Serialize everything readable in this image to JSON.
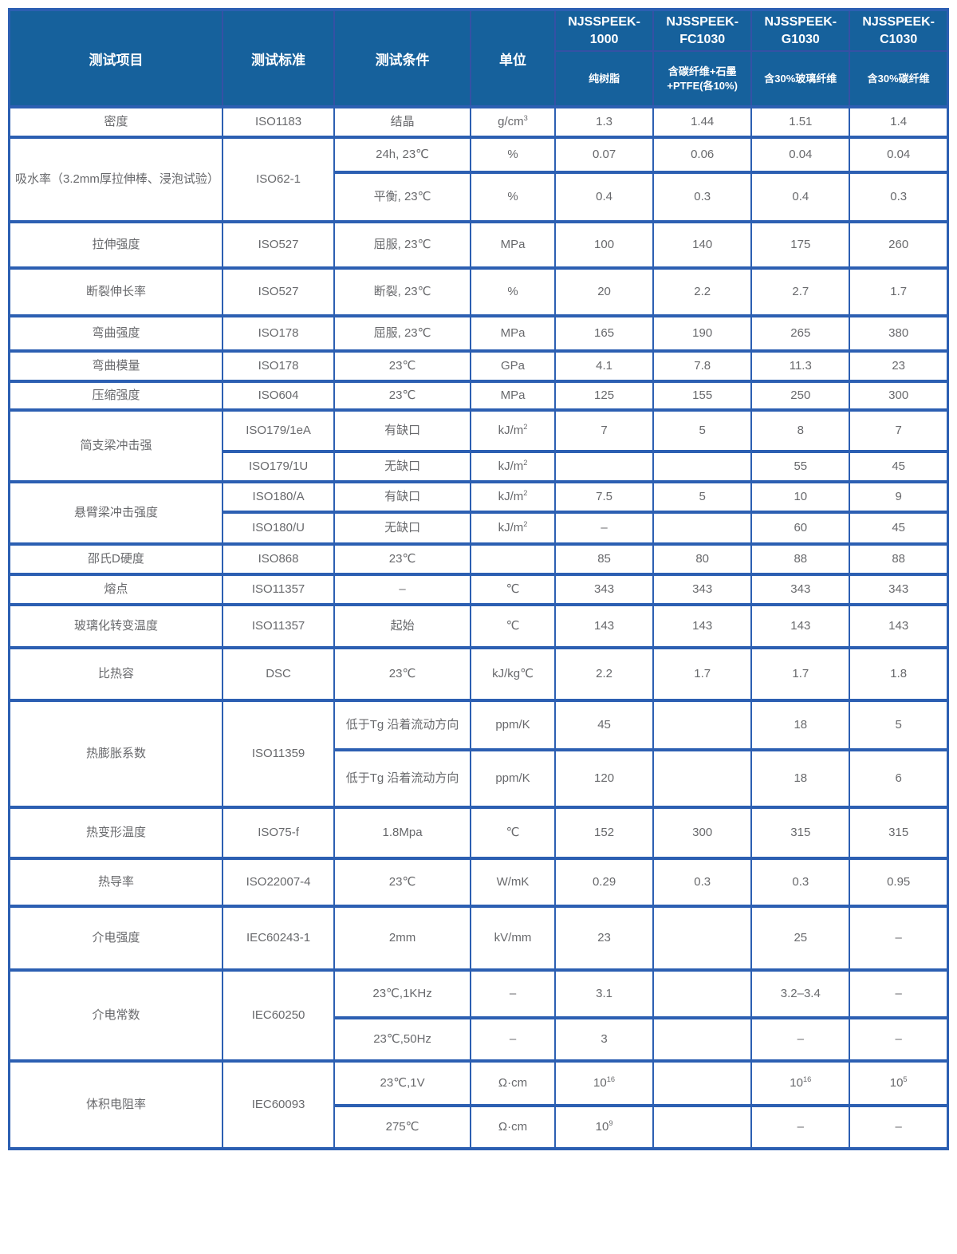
{
  "colors": {
    "header_bg": "#16619C",
    "header_divider": "#3551A5",
    "grid_border": "#2C5FB2",
    "header_text": "#FFFFFF",
    "body_text": "#68696C"
  },
  "table": {
    "columns": [
      "测试项目",
      "测试标准",
      "测试条件",
      "单位"
    ],
    "products": [
      {
        "name": "NJSSPEEK-1000",
        "desc": "纯树脂"
      },
      {
        "name": "NJSSPEEK-FC1030",
        "desc": "含碳纤维+石墨+PTFE(各10%)"
      },
      {
        "name": "NJSSPEEK-G1030",
        "desc": "含30%玻璃纤维"
      },
      {
        "name": "NJSSPEEK-C1030",
        "desc": "含30%碳纤维"
      }
    ],
    "rows": [
      {
        "cells": [
          "密度",
          "ISO1183",
          "结晶",
          {
            "t": "g/cm",
            "s": "3"
          },
          "1.3",
          "1.44",
          "1.51",
          "1.4"
        ]
      },
      {
        "cells": [
          "吸水率（3.2mm厚拉伸棒、浸泡试验）",
          "ISO62-1",
          "24h, 23℃",
          "%",
          "0.07",
          "0.06",
          "0.04",
          "0.04"
        ]
      },
      {
        "cells": [
          "平衡, 23℃",
          "%",
          "0.4",
          "0.3",
          "0.4",
          "0.3"
        ]
      },
      {
        "cells": [
          "拉伸强度",
          "ISO527",
          "屈服, 23℃",
          "MPa",
          "100",
          "140",
          "175",
          "260"
        ]
      },
      {
        "cells": [
          "断裂伸长率",
          "ISO527",
          "断裂, 23℃",
          "%",
          "20",
          "2.2",
          "2.7",
          "1.7"
        ]
      },
      {
        "cells": [
          "弯曲强度",
          "ISO178",
          "屈服, 23℃",
          "MPa",
          "165",
          "190",
          "265",
          "380"
        ]
      },
      {
        "cells": [
          "弯曲模量",
          "ISO178",
          "23℃",
          "GPa",
          "4.1",
          "7.8",
          "11.3",
          "23"
        ]
      },
      {
        "cells": [
          "压缩强度",
          "ISO604",
          "23℃",
          "MPa",
          "125",
          "155",
          "250",
          "300"
        ]
      },
      {
        "cells": [
          "简支梁冲击强",
          "ISO179/1eA",
          "有缺口",
          {
            "t": "kJ/m",
            "s": "2"
          },
          "7",
          "5",
          "8",
          "7"
        ]
      },
      {
        "cells": [
          "ISO179/1U",
          "无缺口",
          {
            "t": "kJ/m",
            "s": "2"
          },
          "",
          "",
          "55",
          "45"
        ]
      },
      {
        "cells": [
          "悬臂梁冲击强度",
          "ISO180/A",
          "有缺口",
          {
            "t": "kJ/m",
            "s": "2"
          },
          "7.5",
          "5",
          "10",
          "9"
        ]
      },
      {
        "cells": [
          "ISO180/U",
          "无缺口",
          {
            "t": "kJ/m",
            "s": "2"
          },
          "–",
          "",
          "60",
          "45"
        ]
      },
      {
        "cells": [
          "邵氏D硬度",
          "ISO868",
          "23℃",
          "",
          "85",
          "80",
          "88",
          "88"
        ]
      },
      {
        "cells": [
          "熔点",
          "ISO11357",
          "–",
          "℃",
          "343",
          "343",
          "343",
          "343"
        ]
      },
      {
        "cells": [
          "玻璃化转变温度",
          "ISO11357",
          "起始",
          "℃",
          "143",
          "143",
          "143",
          "143"
        ]
      },
      {
        "cells": [
          "比热容",
          "DSC",
          "23℃",
          "kJ/kg℃",
          "2.2",
          "1.7",
          "1.7",
          "1.8"
        ]
      },
      {
        "cells": [
          "热膨胀系数",
          "ISO11359",
          "低于Tg 沿着流动方向",
          "ppm/K",
          "45",
          "",
          "18",
          "5"
        ]
      },
      {
        "cells": [
          "低于Tg 沿着流动方向",
          "ppm/K",
          "120",
          "",
          "18",
          "6"
        ]
      },
      {
        "cells": [
          "热变形温度",
          "ISO75-f",
          "1.8Mpa",
          "℃",
          "152",
          "300",
          "315",
          "315"
        ]
      },
      {
        "cells": [
          "热导率",
          "ISO22007-4",
          "23℃",
          "W/mK",
          "0.29",
          "0.3",
          "0.3",
          "0.95"
        ]
      },
      {
        "cells": [
          "介电强度",
          "IEC60243-1",
          "2mm",
          "kV/mm",
          "23",
          "",
          "25",
          "–"
        ]
      },
      {
        "cells": [
          "介电常数",
          "IEC60250",
          "23℃,1KHz",
          "–",
          "3.1",
          "",
          "3.2–3.4",
          "–"
        ]
      },
      {
        "cells": [
          "23℃,50Hz",
          "–",
          "3",
          "",
          "–",
          "–"
        ]
      },
      {
        "cells": [
          "体积电阻率",
          "IEC60093",
          "23℃,1V",
          "Ω·cm",
          {
            "t": "10",
            "s": "16"
          },
          "",
          {
            "t": "10",
            "s": "16"
          },
          {
            "t": "10",
            "s": "5"
          }
        ]
      },
      {
        "cells": [
          "275℃",
          "Ω·cm",
          {
            "t": "10",
            "s": "9"
          },
          "",
          "–",
          "–"
        ]
      }
    ]
  }
}
